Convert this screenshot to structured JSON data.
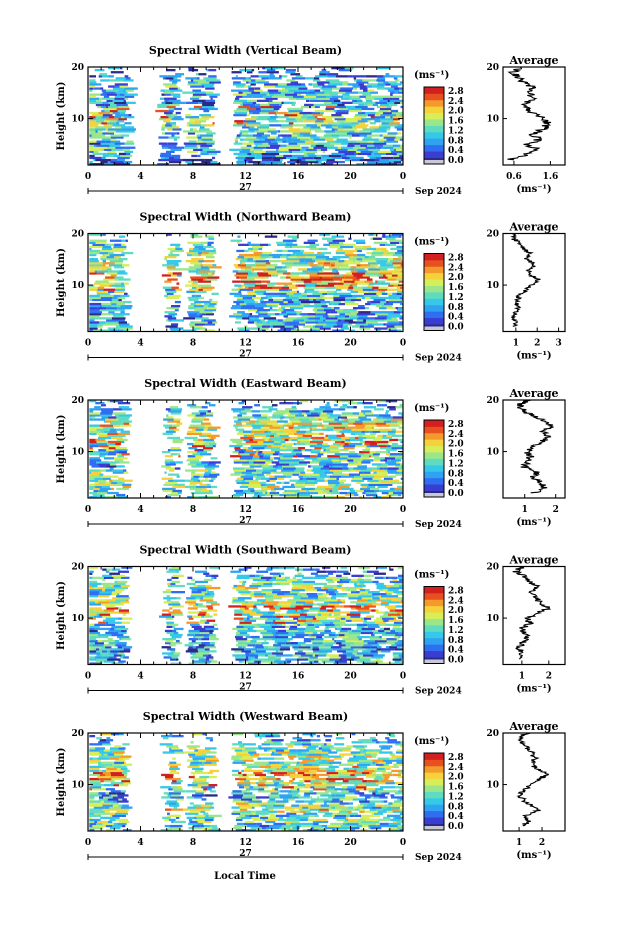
{
  "figure": {
    "date_label": "Sep 2024",
    "day_label": "27",
    "xlabel": "Local Time",
    "ylabel": "Height (km)",
    "unit_label": "(ms⁻¹)",
    "avg_title": "Average"
  },
  "colorbar": {
    "ticks": [
      "2.8",
      "2.4",
      "2.0",
      "1.6",
      "1.2",
      "0.8",
      "0.4",
      "0.0"
    ],
    "colors": [
      "#c8c8d8",
      "#2b2a86",
      "#3a3ed0",
      "#2f6ef0",
      "#2fa2f2",
      "#35c8e8",
      "#5fdcc0",
      "#9ae68a",
      "#d6ee5a",
      "#f6d23a",
      "#f49a2c",
      "#e8501f",
      "#d22020"
    ]
  },
  "chart_data": [
    {
      "type": "heatmap",
      "title": "Spectral Width (Vertical Beam)",
      "x_ticks": [
        "0",
        "4",
        "8",
        "12",
        "16",
        "20",
        "0"
      ],
      "xlim": [
        0,
        24
      ],
      "y_ticks": [
        "20",
        "10"
      ],
      "ylim": [
        1,
        20
      ],
      "colorbar_range": [
        0.0,
        3.0
      ],
      "gaps": [
        [
          3.3,
          5.6
        ],
        [
          7.0,
          7.6
        ],
        [
          9.7,
          11.2
        ]
      ],
      "average": {
        "x_ticks": [
          "0.6",
          "1.6"
        ],
        "xlim": [
          0.3,
          2.0
        ],
        "height": [
          2,
          3,
          4,
          5,
          6,
          7,
          8,
          9,
          10,
          11,
          12,
          13,
          14,
          15,
          16,
          17,
          18,
          19,
          20
        ],
        "value": [
          0.5,
          0.9,
          1.2,
          1.0,
          1.3,
          1.1,
          1.4,
          1.5,
          1.4,
          1.1,
          1.0,
          0.9,
          1.1,
          1.0,
          1.1,
          0.9,
          0.7,
          0.6,
          0.8
        ]
      }
    },
    {
      "type": "heatmap",
      "title": "Spectral Width (Northward Beam)",
      "x_ticks": [
        "0",
        "4",
        "8",
        "12",
        "16",
        "20",
        "0"
      ],
      "xlim": [
        0,
        24
      ],
      "y_ticks": [
        "20",
        "10"
      ],
      "ylim": [
        1,
        20
      ],
      "colorbar_range": [
        0.0,
        3.0
      ],
      "gaps": [
        [
          3.0,
          5.9
        ],
        [
          7.0,
          7.7
        ],
        [
          9.7,
          11.2
        ]
      ],
      "average": {
        "x_ticks": [
          "1",
          "2",
          "3"
        ],
        "xlim": [
          0.4,
          3.3
        ],
        "height": [
          2,
          3,
          4,
          5,
          6,
          7,
          8,
          9,
          10,
          11,
          12,
          13,
          14,
          15,
          16,
          17,
          18,
          19,
          20
        ],
        "value": [
          1.0,
          1.0,
          0.9,
          1.0,
          1.1,
          1.0,
          1.2,
          1.4,
          1.8,
          2.1,
          1.7,
          1.6,
          1.9,
          1.5,
          1.7,
          1.4,
          1.2,
          0.9,
          1.0
        ]
      }
    },
    {
      "type": "heatmap",
      "title": "Spectral Width (Eastward Beam)",
      "x_ticks": [
        "0",
        "4",
        "8",
        "12",
        "16",
        "20",
        "0"
      ],
      "xlim": [
        0,
        24
      ],
      "y_ticks": [
        "20",
        "10"
      ],
      "ylim": [
        1,
        20
      ],
      "colorbar_range": [
        0.0,
        3.0
      ],
      "gaps": [
        [
          3.0,
          5.9
        ],
        [
          7.0,
          7.7
        ],
        [
          9.7,
          11.2
        ]
      ],
      "average": {
        "x_ticks": [
          "1",
          "2"
        ],
        "xlim": [
          0.3,
          2.3
        ],
        "height": [
          2,
          3,
          4,
          5,
          6,
          7,
          8,
          9,
          10,
          11,
          12,
          13,
          14,
          15,
          16,
          17,
          18,
          19,
          20
        ],
        "value": [
          1.3,
          1.6,
          1.5,
          1.3,
          1.4,
          1.0,
          1.1,
          1.2,
          1.1,
          1.3,
          1.6,
          1.8,
          1.5,
          1.9,
          1.6,
          1.2,
          1.0,
          0.8,
          1.1
        ]
      }
    },
    {
      "type": "heatmap",
      "title": "Spectral Width (Southward Beam)",
      "x_ticks": [
        "0",
        "4",
        "8",
        "12",
        "16",
        "20",
        "0"
      ],
      "xlim": [
        0,
        24
      ],
      "y_ticks": [
        "20",
        "10"
      ],
      "ylim": [
        1,
        20
      ],
      "colorbar_range": [
        0.0,
        3.0
      ],
      "gaps": [
        [
          3.0,
          5.9
        ],
        [
          7.0,
          7.7
        ],
        [
          9.7,
          11.2
        ]
      ],
      "average": {
        "x_ticks": [
          "1",
          "2"
        ],
        "xlim": [
          0.3,
          2.6
        ],
        "height": [
          2,
          3,
          4,
          5,
          6,
          7,
          8,
          9,
          10,
          11,
          12,
          13,
          14,
          15,
          16,
          17,
          18,
          19,
          20
        ],
        "value": [
          1.0,
          1.0,
          0.9,
          1.0,
          1.2,
          1.1,
          1.0,
          1.3,
          1.2,
          1.6,
          2.0,
          1.7,
          1.5,
          1.3,
          1.6,
          1.3,
          1.1,
          0.8,
          1.0
        ]
      }
    },
    {
      "type": "heatmap",
      "title": "Spectral Width (Westward Beam)",
      "x_ticks": [
        "0",
        "4",
        "8",
        "12",
        "16",
        "20",
        "0"
      ],
      "xlim": [
        0,
        24
      ],
      "y_ticks": [
        "20",
        "10"
      ],
      "ylim": [
        1,
        20
      ],
      "colorbar_range": [
        0.0,
        3.0
      ],
      "gaps": [
        [
          3.0,
          5.9
        ],
        [
          7.0,
          7.7
        ],
        [
          9.7,
          11.2
        ]
      ],
      "average": {
        "x_ticks": [
          "1",
          "2"
        ],
        "xlim": [
          0.3,
          3.0
        ],
        "height": [
          2,
          3,
          4,
          5,
          6,
          7,
          8,
          9,
          10,
          11,
          12,
          13,
          14,
          15,
          16,
          17,
          18,
          19,
          20
        ],
        "value": [
          1.2,
          1.4,
          1.3,
          1.8,
          1.5,
          1.2,
          1.0,
          1.3,
          1.4,
          1.9,
          2.2,
          1.8,
          1.5,
          1.7,
          1.6,
          1.4,
          1.2,
          1.0,
          1.3
        ]
      }
    }
  ]
}
